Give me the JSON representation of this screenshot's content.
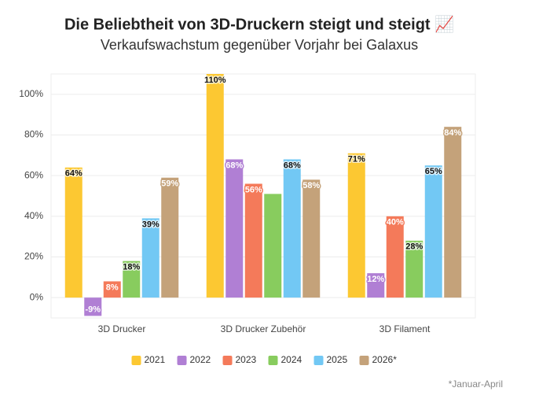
{
  "chart_data": {
    "type": "bar",
    "title": "Die Beliebtheit von 3D-Druckern steigt und steigt 📈",
    "subtitle": "Verkaufswachstum gegenüber Vorjahr bei Galaxus",
    "footnote": "*Januar-April",
    "categories": [
      "3D Drucker",
      "3D Drucker Zubehör",
      "3D Filament"
    ],
    "series": [
      {
        "name": "2021",
        "color": "#fcc832",
        "values": [
          64,
          110,
          71
        ],
        "value_labels": [
          "64%",
          "110%",
          "71%"
        ]
      },
      {
        "name": "2022",
        "color": "#b07fd4",
        "values": [
          -9,
          68,
          12
        ],
        "value_labels": [
          "-9%",
          "68%",
          "12%"
        ]
      },
      {
        "name": "2023",
        "color": "#f47a5a",
        "values": [
          8,
          56,
          40
        ],
        "value_labels": [
          "8%",
          "56%",
          "40%"
        ]
      },
      {
        "name": "2024",
        "color": "#88cc5e",
        "values": [
          18,
          51,
          28
        ],
        "value_labels": [
          "18%",
          null,
          "28%"
        ]
      },
      {
        "name": "2025",
        "color": "#72c8f4",
        "values": [
          39,
          68,
          65
        ],
        "value_labels": [
          "39%",
          "68%",
          "65%"
        ]
      },
      {
        "name": "2026*",
        "color": "#c4a27a",
        "values": [
          59,
          58,
          84
        ],
        "value_labels": [
          "59%",
          "58%",
          "84%"
        ]
      }
    ],
    "ylim": [
      -10,
      110
    ],
    "yticks": [
      {
        "value": 0,
        "label": "0%"
      },
      {
        "value": 20,
        "label": "20%"
      },
      {
        "value": 40,
        "label": "40%"
      },
      {
        "value": 60,
        "label": "60%"
      },
      {
        "value": 80,
        "label": "80%"
      },
      {
        "value": 100,
        "label": "100%"
      }
    ],
    "grid": true,
    "legend": "bottom"
  }
}
